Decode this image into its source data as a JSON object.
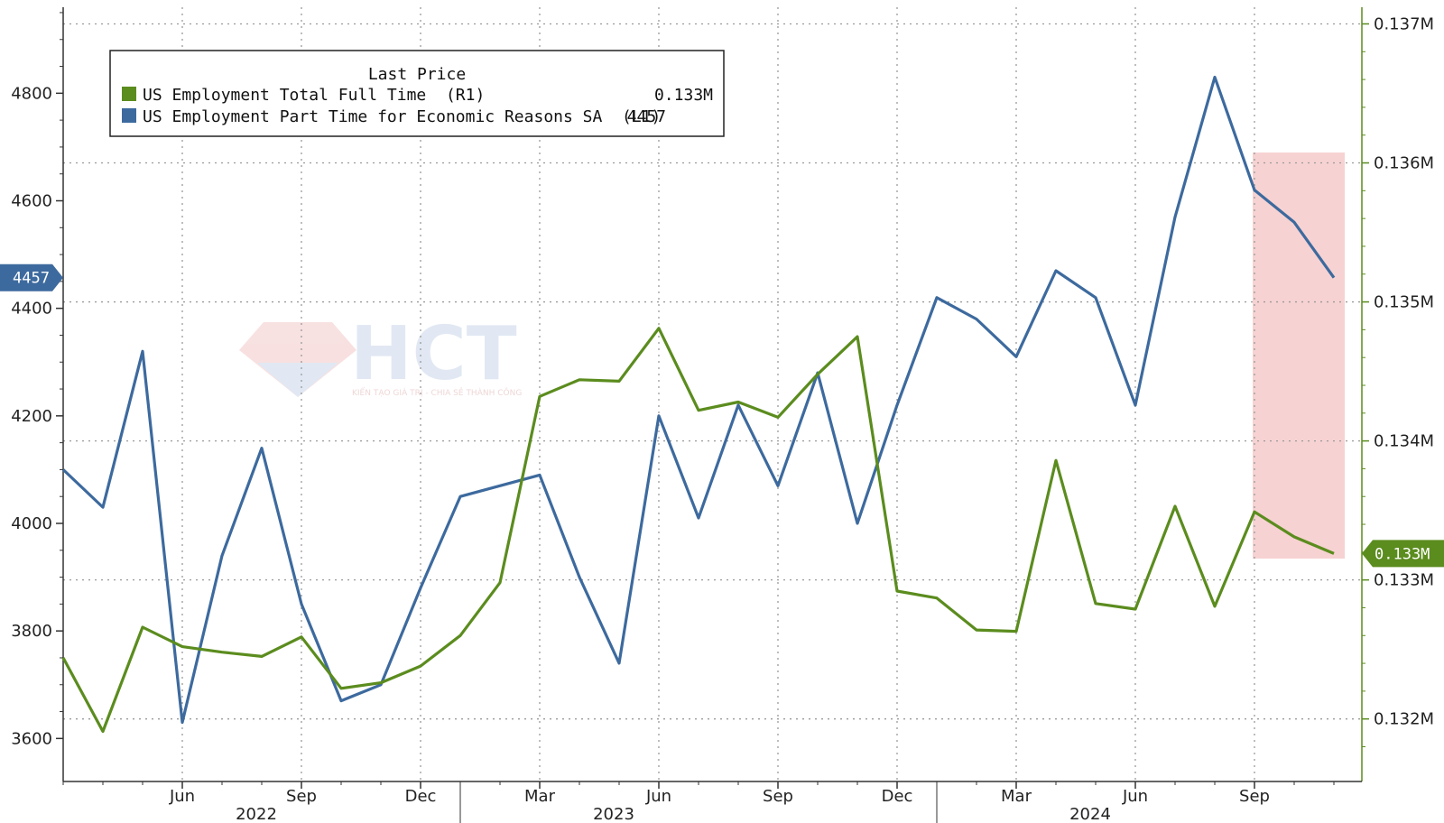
{
  "watermark": {
    "brand": "HCT",
    "tagline": "KIẾN TẠO GIÁ TRỊ - CHIA SẺ THÀNH CÔNG"
  },
  "legend": {
    "header": "Last Price",
    "items": [
      {
        "label": "US Employment Total Full Time  (R1)",
        "value": "0.133M",
        "color": "#5b8c1e"
      },
      {
        "label": "US Employment Part Time for Economic Reasons SA  (L1)",
        "value": "4457",
        "color": "#3d6a9e"
      }
    ]
  },
  "colors": {
    "left_series": "#3d6a9e",
    "right_series": "#5b8c1e",
    "highlight": "#f6caca",
    "grid": "#9a9a9a"
  },
  "chart_data": {
    "type": "line",
    "title": "",
    "x_axis": {
      "month_ticks": [
        "Jun",
        "Sep",
        "Dec",
        "Mar",
        "Jun",
        "Sep",
        "Dec",
        "Mar",
        "Jun",
        "Sep"
      ],
      "year_labels": [
        "2022",
        "2023",
        "2024"
      ]
    },
    "left_axis": {
      "ticks": [
        "3600",
        "3800",
        "4000",
        "4200",
        "4400",
        "4600",
        "4800"
      ],
      "range": [
        3520,
        4960
      ],
      "last_value_tag": "4457"
    },
    "right_axis": {
      "ticks": [
        "0.132M",
        "0.133M",
        "0.133M",
        "0.134M",
        "0.135M",
        "0.136M",
        "0.137M"
      ],
      "range": [
        0.13155,
        0.13712
      ],
      "last_value_tag": "0.133M"
    },
    "x": [
      "2022-03",
      "2022-04",
      "2022-05",
      "2022-06",
      "2022-07",
      "2022-08",
      "2022-09",
      "2022-10",
      "2022-11",
      "2022-12",
      "2023-01",
      "2023-02",
      "2023-03",
      "2023-04",
      "2023-05",
      "2023-06",
      "2023-07",
      "2023-08",
      "2023-09",
      "2023-10",
      "2023-11",
      "2023-12",
      "2024-01",
      "2024-02",
      "2024-03",
      "2024-04",
      "2024-05",
      "2024-06",
      "2024-07",
      "2024-08",
      "2024-09",
      "2024-10",
      "2024-11"
    ],
    "series": [
      {
        "name": "US Employment Part Time for Economic Reasons SA",
        "axis": "left",
        "values": [
          4100,
          4030,
          4320,
          3630,
          3940,
          4140,
          3850,
          3670,
          3700,
          3880,
          4050,
          4070,
          4090,
          3900,
          3740,
          4200,
          4010,
          4220,
          4070,
          4280,
          4000,
          4220,
          4420,
          4380,
          4310,
          4470,
          4420,
          4220,
          4570,
          4830,
          4620,
          4560,
          4457
        ]
      },
      {
        "name": "US Employment Total Full Time",
        "axis": "right",
        "values": [
          0.13244,
          0.13191,
          0.13266,
          0.13252,
          0.13248,
          0.13245,
          0.13259,
          0.13222,
          0.13226,
          0.13238,
          0.1326,
          0.13298,
          0.13432,
          0.13444,
          0.13443,
          0.13481,
          0.13422,
          0.13428,
          0.13417,
          0.13448,
          0.13475,
          0.13292,
          0.13287,
          0.13264,
          0.13263,
          0.13386,
          0.13283,
          0.13279,
          0.13353,
          0.13281,
          0.13349,
          0.13331,
          0.13319
        ]
      }
    ],
    "highlight_range": [
      "2024-09",
      "2024-11"
    ]
  }
}
